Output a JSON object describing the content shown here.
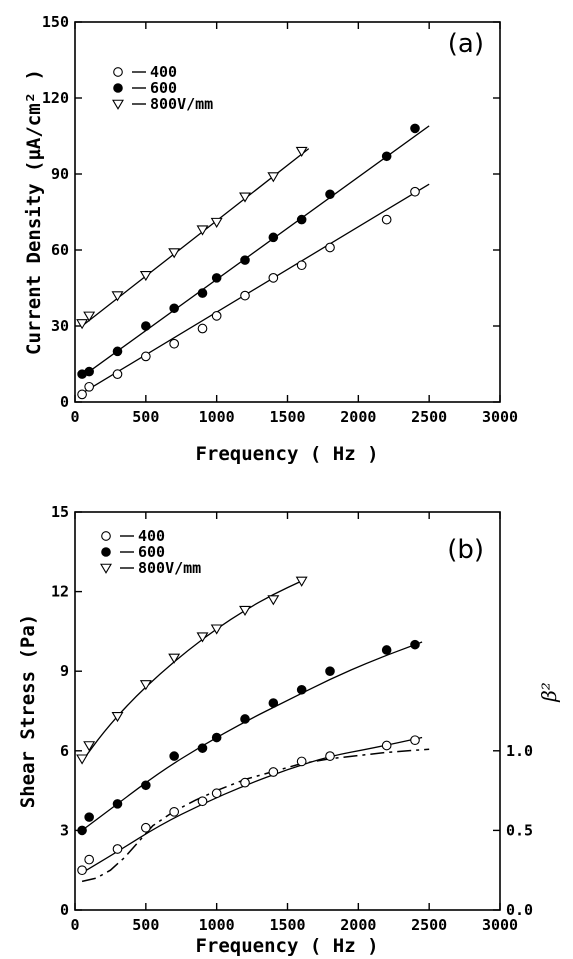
{
  "chart_data": [
    {
      "type": "scatter",
      "panel": "(a)",
      "xlabel": "Frequency ( Hz )",
      "ylabel": "Current Density (µA/cm² )",
      "xlim": [
        0,
        3000
      ],
      "ylim": [
        0,
        150
      ],
      "xticks": [
        0,
        500,
        1000,
        1500,
        2000,
        2500,
        3000
      ],
      "yticks": [
        0,
        30,
        60,
        90,
        120,
        150
      ],
      "legend_position": "top-left",
      "series": [
        {
          "name": "400",
          "marker": "open-circle",
          "x": [
            50,
            100,
            300,
            500,
            700,
            900,
            1000,
            1200,
            1400,
            1600,
            1800,
            2200,
            2400
          ],
          "y": [
            3,
            6,
            11,
            18,
            23,
            29,
            34,
            42,
            49,
            54,
            61,
            72,
            83
          ],
          "fit": {
            "kind": "line",
            "x0": 50,
            "y0": 3.5,
            "x1": 2500,
            "y1": 86
          }
        },
        {
          "name": "600",
          "marker": "filled-circle",
          "x": [
            50,
            100,
            300,
            500,
            700,
            900,
            1000,
            1200,
            1400,
            1600,
            1800,
            2200,
            2400
          ],
          "y": [
            11,
            12,
            20,
            30,
            37,
            43,
            49,
            56,
            65,
            72,
            82,
            97,
            108
          ],
          "fit": {
            "kind": "line",
            "x0": 50,
            "y0": 10,
            "x1": 2500,
            "y1": 109
          }
        },
        {
          "name": "800V/mm",
          "marker": "open-triangle-down",
          "x": [
            50,
            100,
            300,
            500,
            700,
            900,
            1000,
            1200,
            1400,
            1600
          ],
          "y": [
            31,
            34,
            42,
            50,
            59,
            68,
            71,
            81,
            89,
            99
          ],
          "fit": {
            "kind": "line",
            "x0": 50,
            "y0": 30,
            "x1": 1650,
            "y1": 100
          }
        }
      ]
    },
    {
      "type": "scatter",
      "panel": "(b)",
      "xlabel": "Frequency ( Hz )",
      "ylabel": "Shear Stress (Pa)",
      "y2label": "β²",
      "xlim": [
        0,
        3000
      ],
      "ylim": [
        0,
        15
      ],
      "y2lim": [
        0.0,
        2.5
      ],
      "xticks": [
        0,
        500,
        1000,
        1500,
        2000,
        2500,
        3000
      ],
      "yticks": [
        0,
        3,
        6,
        9,
        12,
        15
      ],
      "y2ticks": [
        "0.0",
        "0.5",
        "1.0"
      ],
      "legend_position": "top-left",
      "series": [
        {
          "name": "400",
          "marker": "open-circle",
          "x": [
            50,
            100,
            300,
            500,
            700,
            900,
            1000,
            1200,
            1400,
            1600,
            1800,
            2200,
            2400
          ],
          "y": [
            1.5,
            1.9,
            2.3,
            3.1,
            3.7,
            4.1,
            4.4,
            4.8,
            5.2,
            5.6,
            5.8,
            6.2,
            6.4
          ],
          "fit": {
            "kind": "curve",
            "x": [
              50,
              300,
              600,
              900,
              1200,
              1500,
              1800,
              2100,
              2450
            ],
            "y": [
              1.4,
              2.2,
              3.2,
              4.0,
              4.7,
              5.3,
              5.8,
              6.1,
              6.5
            ]
          }
        },
        {
          "name": "600",
          "marker": "filled-circle",
          "x": [
            50,
            100,
            300,
            500,
            700,
            900,
            1000,
            1200,
            1400,
            1600,
            1800,
            2200,
            2400
          ],
          "y": [
            3.0,
            3.5,
            4.0,
            4.7,
            5.8,
            6.1,
            6.5,
            7.2,
            7.8,
            8.3,
            9.0,
            9.8,
            10.0
          ],
          "fit": {
            "kind": "curve",
            "x": [
              50,
              300,
              600,
              900,
              1200,
              1500,
              1800,
              2100,
              2450
            ],
            "y": [
              3.0,
              4.0,
              5.2,
              6.2,
              7.1,
              7.9,
              8.7,
              9.4,
              10.1
            ]
          }
        },
        {
          "name": "800V/mm",
          "marker": "open-triangle-down",
          "x": [
            50,
            100,
            300,
            500,
            700,
            900,
            1000,
            1200,
            1400,
            1600
          ],
          "y": [
            5.7,
            6.2,
            7.3,
            8.5,
            9.5,
            10.3,
            10.6,
            11.3,
            11.7,
            12.4
          ],
          "fit": {
            "kind": "curve",
            "x": [
              50,
              200,
              400,
              600,
              800,
              1000,
              1200,
              1400,
              1600
            ],
            "y": [
              5.6,
              6.7,
              7.9,
              8.9,
              9.8,
              10.6,
              11.3,
              11.9,
              12.4
            ]
          }
        },
        {
          "name": "",
          "axis": "right",
          "marker": "none",
          "style": "dash-dot",
          "x": [
            50,
            150,
            250,
            350,
            450,
            550,
            700,
            850,
            1000,
            1200,
            1400,
            1600,
            1800,
            2000,
            2200,
            2500
          ],
          "y": [
            0.18,
            0.2,
            0.25,
            0.33,
            0.43,
            0.53,
            0.62,
            0.69,
            0.75,
            0.82,
            0.87,
            0.92,
            0.95,
            0.97,
            0.99,
            1.01
          ]
        }
      ]
    }
  ]
}
